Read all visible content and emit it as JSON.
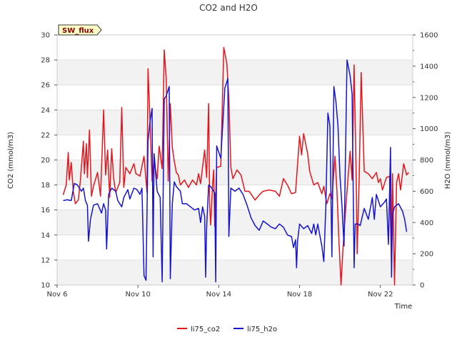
{
  "chart_data": {
    "type": "line",
    "title": "CO2 and H2O",
    "xlabel": "Time",
    "ylabel_left": "CO2 (mmol/m3)",
    "ylabel_right": "H2O (mmol/m3)",
    "site_badge": "SW_flux",
    "x_ticks": [
      "Nov 6",
      "Nov 10",
      "Nov 14",
      "Nov 18",
      "Nov 22"
    ],
    "y_left_ticks": [
      "10",
      "12",
      "14",
      "16",
      "18",
      "20",
      "22",
      "24",
      "26",
      "28",
      "30"
    ],
    "y_right_ticks": [
      "0",
      "200",
      "400",
      "600",
      "800",
      "1000",
      "1200",
      "1400",
      "1600"
    ],
    "xlim_days": [
      6,
      23.6
    ],
    "ylim_left": [
      10,
      30
    ],
    "ylim_right": [
      0,
      1600
    ],
    "band_color": "#f2f2f2",
    "grid_color": "#dcdcdc",
    "legend_placement": "bottom-center",
    "series": [
      {
        "name": "li75_co2",
        "axis": "left",
        "color": "#e8141b",
        "points": [
          [
            6.3,
            17.2
          ],
          [
            6.45,
            18.0
          ],
          [
            6.55,
            20.6
          ],
          [
            6.6,
            18.4
          ],
          [
            6.7,
            19.8
          ],
          [
            6.8,
            17.5
          ],
          [
            6.9,
            16.5
          ],
          [
            7.05,
            16.8
          ],
          [
            7.15,
            18.3
          ],
          [
            7.3,
            21.5
          ],
          [
            7.35,
            18.9
          ],
          [
            7.45,
            21.3
          ],
          [
            7.5,
            18.6
          ],
          [
            7.6,
            22.4
          ],
          [
            7.7,
            17.1
          ],
          [
            7.8,
            17.9
          ],
          [
            8.0,
            19.0
          ],
          [
            8.15,
            17.1
          ],
          [
            8.3,
            24.0
          ],
          [
            8.4,
            18.8
          ],
          [
            8.5,
            20.8
          ],
          [
            8.6,
            17.0
          ],
          [
            8.7,
            20.9
          ],
          [
            8.8,
            18.5
          ],
          [
            8.9,
            17.4
          ],
          [
            9.1,
            18.2
          ],
          [
            9.2,
            24.2
          ],
          [
            9.3,
            17.8
          ],
          [
            9.4,
            19.4
          ],
          [
            9.6,
            18.9
          ],
          [
            9.8,
            19.7
          ],
          [
            9.9,
            18.9
          ],
          [
            10.1,
            18.7
          ],
          [
            10.3,
            20.3
          ],
          [
            10.45,
            17.4
          ],
          [
            10.5,
            27.3
          ],
          [
            10.6,
            23.0
          ],
          [
            10.7,
            18.3
          ],
          [
            10.8,
            19.8
          ],
          [
            10.95,
            18.5
          ],
          [
            11.05,
            21.1
          ],
          [
            11.2,
            19.3
          ],
          [
            11.3,
            28.8
          ],
          [
            11.4,
            26.5
          ],
          [
            11.5,
            18.3
          ],
          [
            11.6,
            24.5
          ],
          [
            11.7,
            21.0
          ],
          [
            11.8,
            19.9
          ],
          [
            11.9,
            19.0
          ],
          [
            12.0,
            18.8
          ],
          [
            12.1,
            18.0
          ],
          [
            12.3,
            18.4
          ],
          [
            12.5,
            17.8
          ],
          [
            12.7,
            18.4
          ],
          [
            12.9,
            18.0
          ],
          [
            13.0,
            18.9
          ],
          [
            13.1,
            18.1
          ],
          [
            13.3,
            20.8
          ],
          [
            13.4,
            18.6
          ],
          [
            13.5,
            24.5
          ],
          [
            13.55,
            16.5
          ],
          [
            13.6,
            14.8
          ],
          [
            13.7,
            18.2
          ],
          [
            13.75,
            19.2
          ],
          [
            13.8,
            14.7
          ],
          [
            13.9,
            19.4
          ],
          [
            14.1,
            19.5
          ],
          [
            14.25,
            29.0
          ],
          [
            14.4,
            27.7
          ],
          [
            14.5,
            24.9
          ],
          [
            14.6,
            19.4
          ],
          [
            14.7,
            18.5
          ],
          [
            14.9,
            19.2
          ],
          [
            15.1,
            18.8
          ],
          [
            15.3,
            17.5
          ],
          [
            15.5,
            17.5
          ],
          [
            15.8,
            16.8
          ],
          [
            16.0,
            17.2
          ],
          [
            16.2,
            17.5
          ],
          [
            16.5,
            17.6
          ],
          [
            16.8,
            17.5
          ],
          [
            17.0,
            17.1
          ],
          [
            17.2,
            18.5
          ],
          [
            17.4,
            18.0
          ],
          [
            17.6,
            17.3
          ],
          [
            17.8,
            17.4
          ],
          [
            18.0,
            21.9
          ],
          [
            18.1,
            20.4
          ],
          [
            18.2,
            22.1
          ],
          [
            18.4,
            20.5
          ],
          [
            18.5,
            19.1
          ],
          [
            18.7,
            18.0
          ],
          [
            18.9,
            18.2
          ],
          [
            19.1,
            17.3
          ],
          [
            19.2,
            17.9
          ],
          [
            19.35,
            16.5
          ],
          [
            19.5,
            17.3
          ],
          [
            19.6,
            16.9
          ],
          [
            19.75,
            20.3
          ],
          [
            19.85,
            17.5
          ],
          [
            19.95,
            13.5
          ],
          [
            20.05,
            10.0
          ],
          [
            20.15,
            13.0
          ],
          [
            20.3,
            16.5
          ],
          [
            20.5,
            20.7
          ],
          [
            20.6,
            18.4
          ],
          [
            20.7,
            27.6
          ],
          [
            20.8,
            18.8
          ],
          [
            20.85,
            12.5
          ],
          [
            20.95,
            18.5
          ],
          [
            21.05,
            27.0
          ],
          [
            21.2,
            19.1
          ],
          [
            21.4,
            18.9
          ],
          [
            21.6,
            18.5
          ],
          [
            21.8,
            19.0
          ],
          [
            21.9,
            18.2
          ],
          [
            22.0,
            18.5
          ],
          [
            22.1,
            17.6
          ],
          [
            22.3,
            18.6
          ],
          [
            22.45,
            18.7
          ],
          [
            22.55,
            11.5
          ],
          [
            22.6,
            18.9
          ],
          [
            22.7,
            10.0
          ],
          [
            22.8,
            18.2
          ],
          [
            22.9,
            18.9
          ],
          [
            23.0,
            17.6
          ],
          [
            23.15,
            19.7
          ],
          [
            23.3,
            18.8
          ],
          [
            23.4,
            19.0
          ]
        ]
      },
      {
        "name": "li75_h2o",
        "axis": "right",
        "color": "#1414d2",
        "points": [
          [
            6.3,
            540
          ],
          [
            6.5,
            545
          ],
          [
            6.7,
            540
          ],
          [
            6.85,
            650
          ],
          [
            7.0,
            640
          ],
          [
            7.2,
            600
          ],
          [
            7.3,
            620
          ],
          [
            7.4,
            540
          ],
          [
            7.5,
            510
          ],
          [
            7.55,
            280
          ],
          [
            7.65,
            420
          ],
          [
            7.8,
            510
          ],
          [
            8.0,
            520
          ],
          [
            8.2,
            460
          ],
          [
            8.3,
            520
          ],
          [
            8.4,
            480
          ],
          [
            8.45,
            230
          ],
          [
            8.55,
            580
          ],
          [
            8.7,
            620
          ],
          [
            8.9,
            600
          ],
          [
            9.0,
            540
          ],
          [
            9.2,
            500
          ],
          [
            9.3,
            560
          ],
          [
            9.5,
            610
          ],
          [
            9.6,
            550
          ],
          [
            9.8,
            620
          ],
          [
            9.95,
            610
          ],
          [
            10.1,
            580
          ],
          [
            10.2,
            620
          ],
          [
            10.3,
            60
          ],
          [
            10.4,
            30
          ],
          [
            10.5,
            920
          ],
          [
            10.6,
            1050
          ],
          [
            10.7,
            1130
          ],
          [
            10.75,
            180
          ],
          [
            10.8,
            840
          ],
          [
            10.95,
            600
          ],
          [
            11.1,
            560
          ],
          [
            11.2,
            20
          ],
          [
            11.3,
            1190
          ],
          [
            11.4,
            1210
          ],
          [
            11.55,
            1270
          ],
          [
            11.6,
            40
          ],
          [
            11.7,
            520
          ],
          [
            11.8,
            660
          ],
          [
            11.9,
            630
          ],
          [
            12.1,
            600
          ],
          [
            12.2,
            520
          ],
          [
            12.4,
            520
          ],
          [
            12.6,
            500
          ],
          [
            12.8,
            480
          ],
          [
            13.0,
            490
          ],
          [
            13.1,
            400
          ],
          [
            13.2,
            500
          ],
          [
            13.3,
            440
          ],
          [
            13.35,
            50
          ],
          [
            13.4,
            370
          ],
          [
            13.5,
            640
          ],
          [
            13.6,
            630
          ],
          [
            13.8,
            590
          ],
          [
            13.85,
            20
          ],
          [
            13.9,
            890
          ],
          [
            14.1,
            810
          ],
          [
            14.3,
            1260
          ],
          [
            14.45,
            1320
          ],
          [
            14.5,
            310
          ],
          [
            14.6,
            620
          ],
          [
            14.8,
            600
          ],
          [
            15.0,
            620
          ],
          [
            15.2,
            580
          ],
          [
            15.4,
            510
          ],
          [
            15.6,
            430
          ],
          [
            15.8,
            380
          ],
          [
            16.0,
            350
          ],
          [
            16.2,
            410
          ],
          [
            16.4,
            390
          ],
          [
            16.6,
            370
          ],
          [
            16.8,
            360
          ],
          [
            17.0,
            390
          ],
          [
            17.2,
            370
          ],
          [
            17.4,
            320
          ],
          [
            17.6,
            310
          ],
          [
            17.7,
            240
          ],
          [
            17.8,
            290
          ],
          [
            17.85,
            110
          ],
          [
            17.9,
            280
          ],
          [
            18.0,
            390
          ],
          [
            18.2,
            360
          ],
          [
            18.4,
            380
          ],
          [
            18.6,
            330
          ],
          [
            18.7,
            390
          ],
          [
            18.8,
            320
          ],
          [
            18.9,
            390
          ],
          [
            19.0,
            320
          ],
          [
            19.1,
            250
          ],
          [
            19.2,
            150
          ],
          [
            19.3,
            500
          ],
          [
            19.4,
            1100
          ],
          [
            19.5,
            1020
          ],
          [
            19.6,
            180
          ],
          [
            19.7,
            1270
          ],
          [
            19.8,
            1170
          ],
          [
            19.9,
            1020
          ],
          [
            20.0,
            700
          ],
          [
            20.1,
            500
          ],
          [
            20.2,
            250
          ],
          [
            20.35,
            1440
          ],
          [
            20.5,
            1340
          ],
          [
            20.6,
            1220
          ],
          [
            20.7,
            110
          ],
          [
            20.75,
            390
          ],
          [
            20.9,
            390
          ],
          [
            21.0,
            380
          ],
          [
            21.2,
            490
          ],
          [
            21.4,
            420
          ],
          [
            21.6,
            560
          ],
          [
            21.7,
            420
          ],
          [
            21.8,
            580
          ],
          [
            22.0,
            500
          ],
          [
            22.2,
            530
          ],
          [
            22.3,
            550
          ],
          [
            22.4,
            260
          ],
          [
            22.5,
            880
          ],
          [
            22.55,
            50
          ],
          [
            22.6,
            450
          ],
          [
            22.7,
            500
          ],
          [
            22.9,
            520
          ],
          [
            23.1,
            470
          ],
          [
            23.2,
            420
          ],
          [
            23.3,
            340
          ]
        ]
      }
    ]
  }
}
